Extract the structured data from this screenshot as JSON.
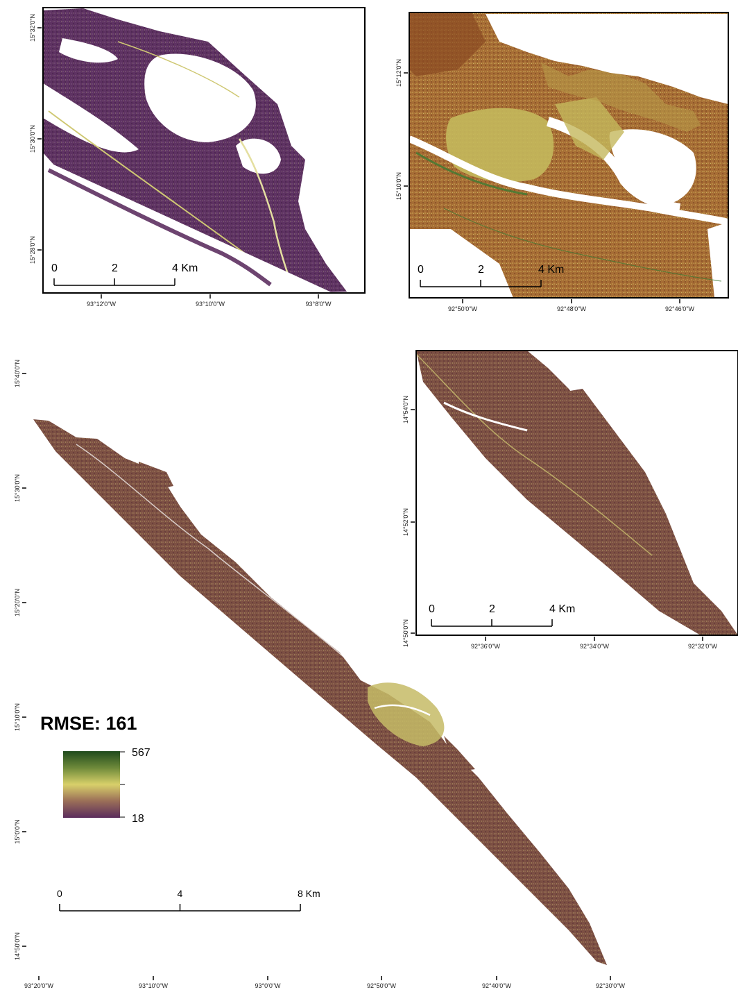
{
  "colors": {
    "low": "#5a2d5e",
    "mid": "#c9c46a",
    "high": "#234a1f",
    "brown": "#7a4f3e",
    "orange": "#a8642c"
  },
  "map_main": {
    "lat_ticks": [
      "15°40'0\"N",
      "15°30'0\"N",
      "15°20'0\"N",
      "15°10'0\"N",
      "15°0'0\"N",
      "14°50'0\"N"
    ],
    "lon_ticks": [
      "93°20'0\"W",
      "93°10'0\"W",
      "93°0'0\"W",
      "92°50'0\"W",
      "92°40'0\"W",
      "92°30'0\"W"
    ],
    "scale": {
      "labels": [
        "0",
        "4",
        "8 Km"
      ]
    },
    "rmse_label": "RMSE: 161",
    "legend": {
      "max": "567",
      "min": "18"
    }
  },
  "inset_1": {
    "lat_ticks": [
      "15°32'0\"N",
      "15°30'0\"N",
      "15°28'0\"N"
    ],
    "lon_ticks": [
      "93°12'0\"W",
      "93°10'0\"W",
      "93°8'0\"W"
    ],
    "scale": {
      "labels": [
        "0",
        "2",
        "4 Km"
      ]
    }
  },
  "inset_2": {
    "lat_ticks": [
      "15°12'0\"N",
      "15°10'0\"N"
    ],
    "lon_ticks": [
      "92°50'0\"W",
      "92°48'0\"W",
      "92°46'0\"W"
    ],
    "scale": {
      "labels": [
        "0",
        "2",
        "4 Km"
      ]
    }
  },
  "inset_3": {
    "lat_ticks": [
      "14°54'0\"N",
      "14°52'0\"N",
      "14°50'0\"N"
    ],
    "lon_ticks": [
      "92°36'0\"W",
      "92°34'0\"W",
      "92°32'0\"W"
    ],
    "scale": {
      "labels": [
        "0",
        "2",
        "4 Km"
      ]
    }
  }
}
